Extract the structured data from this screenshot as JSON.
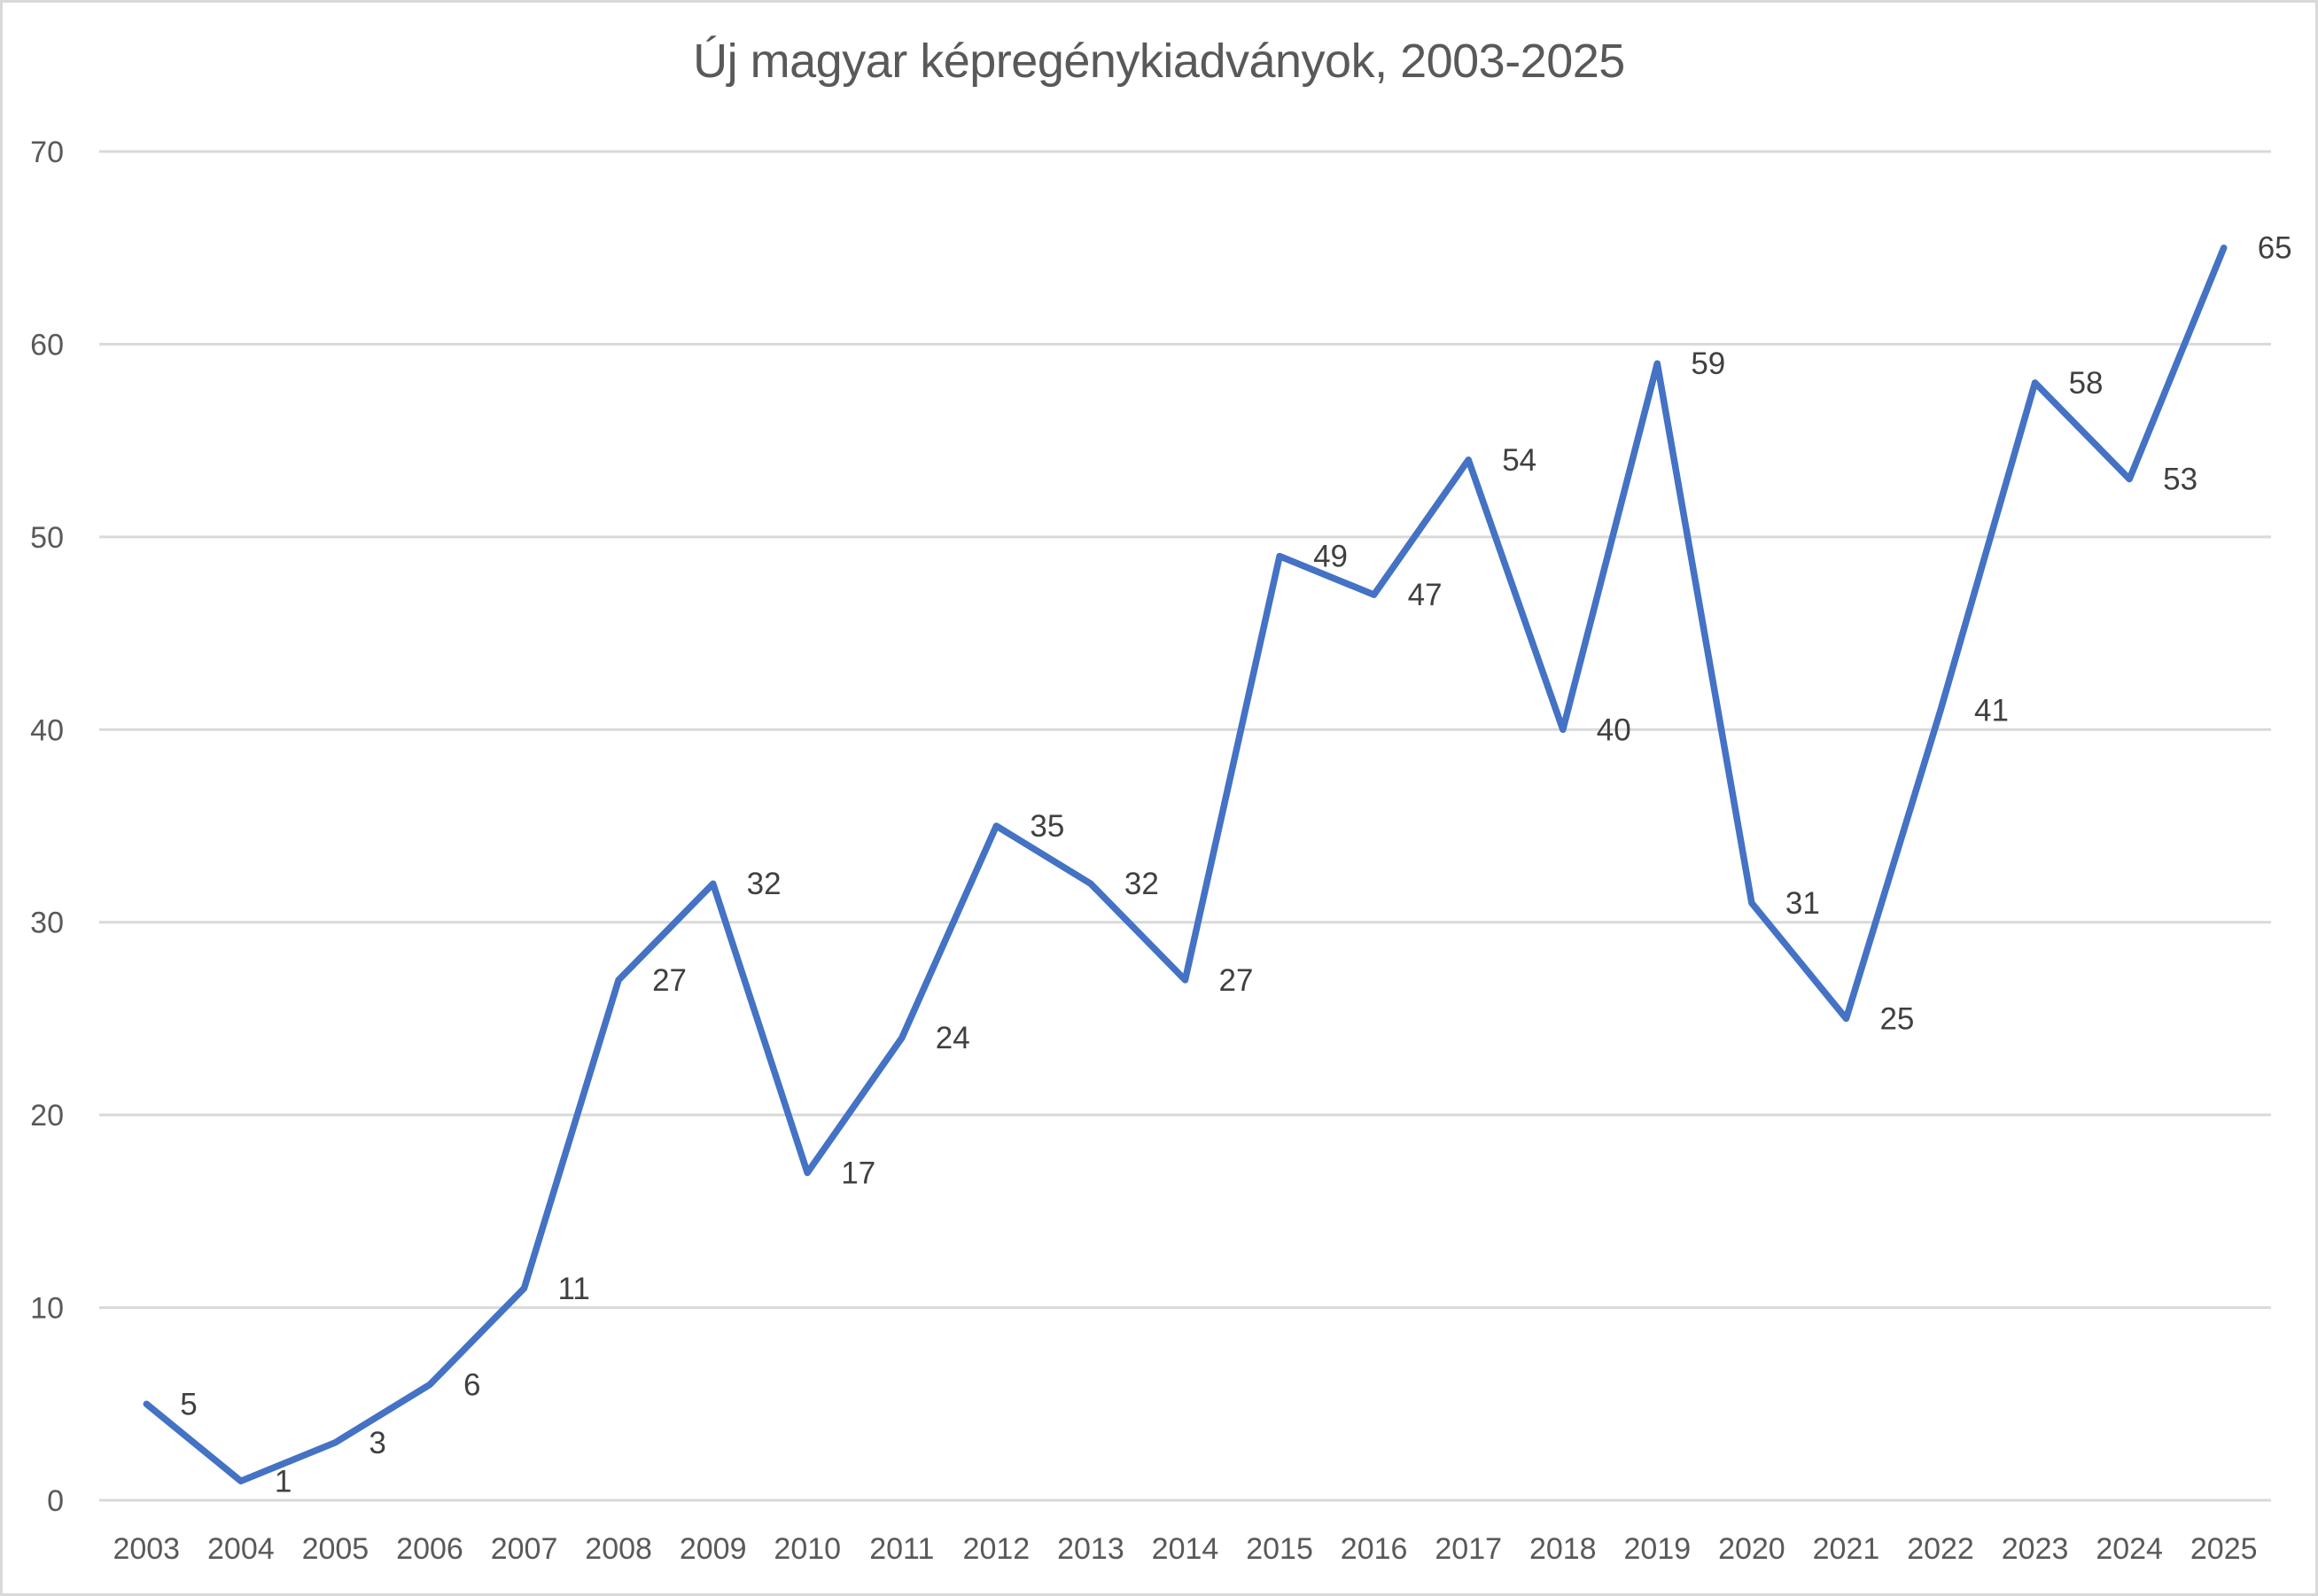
{
  "title": "Új magyar képregénykiadványok, 2003-2025",
  "chart_data": {
    "type": "line",
    "title": "Új magyar képregénykiadványok, 2003-2025",
    "xlabel": "",
    "ylabel": "",
    "categories": [
      "2003",
      "2004",
      "2005",
      "2006",
      "2007",
      "2008",
      "2009",
      "2010",
      "2011",
      "2012",
      "2013",
      "2014",
      "2015",
      "2016",
      "2017",
      "2018",
      "2019",
      "2020",
      "2021",
      "2022",
      "2023",
      "2024",
      "2025"
    ],
    "series": [
      {
        "name": "Új magyar képregénykiadványok",
        "values": [
          5,
          1,
          3,
          6,
          11,
          27,
          32,
          17,
          24,
          35,
          32,
          27,
          49,
          47,
          54,
          40,
          59,
          31,
          25,
          41,
          58,
          53,
          65
        ],
        "color": "#4472C4"
      }
    ],
    "ylim": [
      0,
      70
    ],
    "yticks": [
      0,
      10,
      20,
      30,
      40,
      50,
      60,
      70
    ],
    "grid": true,
    "legend": "none",
    "data_labels": true
  },
  "colors": {
    "line": "#4472C4",
    "gridline": "#D9D9D9",
    "axis_text": "#595959",
    "label_text": "#404040",
    "border": "#D9D9D9"
  }
}
